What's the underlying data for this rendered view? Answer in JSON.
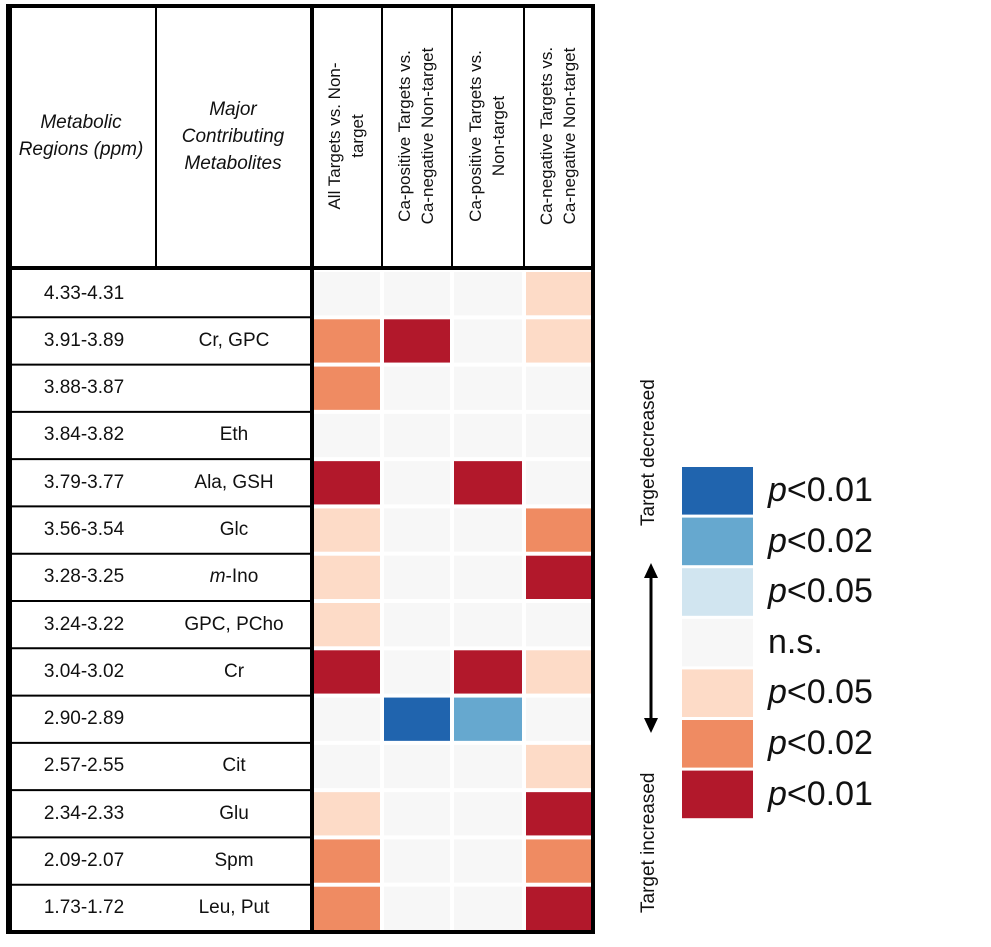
{
  "chart_data": {
    "type": "heatmap",
    "table_headers": {
      "regions": "Metabolic Regions (ppm)",
      "regions_lines": [
        "Metabolic",
        "Regions (ppm)"
      ],
      "metabolites_lines": [
        "Major",
        "Contributing",
        "Metabolites"
      ]
    },
    "columns": [
      {
        "id": "c1",
        "lines": [
          "All Targets vs. Non-",
          "target"
        ]
      },
      {
        "id": "c2",
        "lines": [
          "Ca-positive Targets vs.",
          "Ca-negative Non-target"
        ]
      },
      {
        "id": "c3",
        "lines": [
          "Ca-positive Targets vs.",
          "Non-target"
        ]
      },
      {
        "id": "c4",
        "lines": [
          "Ca-negative Targets vs.",
          "Ca-negative Non-target"
        ]
      }
    ],
    "rows": [
      {
        "range": "4.33-4.31",
        "metabolites": "",
        "values": [
          0,
          0,
          0,
          1
        ]
      },
      {
        "range": "3.91-3.89",
        "metabolites": "Cr, GPC",
        "values": [
          2,
          3,
          0,
          1
        ]
      },
      {
        "range": "3.88-3.87",
        "metabolites": "",
        "values": [
          2,
          0,
          0,
          0
        ]
      },
      {
        "range": "3.84-3.82",
        "metabolites": "Eth",
        "values": [
          0,
          0,
          0,
          0
        ]
      },
      {
        "range": "3.79-3.77",
        "metabolites": "Ala, GSH",
        "values": [
          3,
          0,
          3,
          0
        ]
      },
      {
        "range": "3.56-3.54",
        "metabolites": "Glc",
        "values": [
          1,
          0,
          0,
          2
        ]
      },
      {
        "range": "3.28-3.25",
        "metabolites_italic": "m",
        "metabolites_rest": "-Ino",
        "values": [
          1,
          0,
          0,
          3
        ]
      },
      {
        "range": "3.24-3.22",
        "metabolites": "GPC, PCho",
        "values": [
          1,
          0,
          0,
          0
        ]
      },
      {
        "range": "3.04-3.02",
        "metabolites": "Cr",
        "values": [
          3,
          0,
          3,
          1
        ]
      },
      {
        "range": "2.90-2.89",
        "metabolites": "",
        "values": [
          0,
          -3,
          -2,
          0
        ]
      },
      {
        "range": "2.57-2.55",
        "metabolites": "Cit",
        "values": [
          0,
          0,
          0,
          1
        ]
      },
      {
        "range": "2.34-2.33",
        "metabolites": "Glu",
        "values": [
          1,
          0,
          0,
          3
        ]
      },
      {
        "range": "2.09-2.07",
        "metabolites": "Spm",
        "values": [
          2,
          0,
          0,
          2
        ]
      },
      {
        "range": "1.73-1.72",
        "metabolites": "Leu, Put",
        "values": [
          2,
          0,
          0,
          3
        ]
      }
    ],
    "scale": [
      {
        "level": -3,
        "color": "#2064ae",
        "p": "p",
        "label": "<0.01"
      },
      {
        "level": -2,
        "color": "#66a8cf",
        "p": "p",
        "label": "<0.02"
      },
      {
        "level": -1,
        "color": "#d1e5f0",
        "p": "p",
        "label": "<0.05"
      },
      {
        "level": 0,
        "color": "#f7f7f7",
        "p": "",
        "label": "n.s."
      },
      {
        "level": 1,
        "color": "#fddbc7",
        "p": "p",
        "label": "<0.05"
      },
      {
        "level": 2,
        "color": "#ef8b62",
        "p": "p",
        "label": "<0.02"
      },
      {
        "level": 3,
        "color": "#b2182b",
        "p": "p",
        "label": "<0.01"
      }
    ],
    "arrow_labels": {
      "top": "Target decreased",
      "bottom": "Target increased"
    }
  }
}
